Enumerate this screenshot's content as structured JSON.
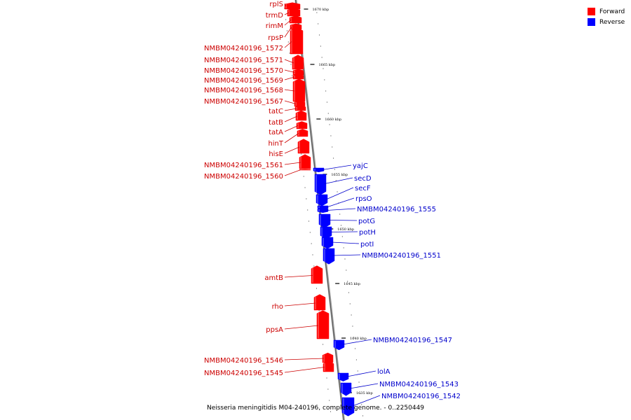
{
  "legend": {
    "forward": {
      "label": "Forward",
      "color": "#ff0000"
    },
    "reverse": {
      "label": "Reverse",
      "color": "#0000ff"
    }
  },
  "caption": "Neisseria meningitidis M04-240196, complete genome. - 0..2250449",
  "axis_ticks": [
    {
      "label": "1670 kbp",
      "kbp": 1670
    },
    {
      "label": "1665 kbp",
      "kbp": 1665
    },
    {
      "label": "1660 kbp",
      "kbp": 1660
    },
    {
      "label": "1655 kbp",
      "kbp": 1655
    },
    {
      "label": "1650 kbp",
      "kbp": 1650
    },
    {
      "label": "1645 kbp",
      "kbp": 1645
    },
    {
      "label": "1640 kbp",
      "kbp": 1640
    },
    {
      "label": "1635 kbp",
      "kbp": 1635
    }
  ],
  "forward_genes": [
    {
      "name": "rplS"
    },
    {
      "name": "trmD"
    },
    {
      "name": "rimM"
    },
    {
      "name": "rpsP"
    },
    {
      "name": "NMBM04240196_1572"
    },
    {
      "name": "NMBM04240196_1571"
    },
    {
      "name": "NMBM04240196_1570"
    },
    {
      "name": "NMBM04240196_1569"
    },
    {
      "name": "NMBM04240196_1568"
    },
    {
      "name": "NMBM04240196_1567"
    },
    {
      "name": "tatC"
    },
    {
      "name": "tatB"
    },
    {
      "name": "tatA"
    },
    {
      "name": "hinT"
    },
    {
      "name": "hisE"
    },
    {
      "name": "NMBM04240196_1561"
    },
    {
      "name": "NMBM04240196_1560"
    },
    {
      "name": "amtB"
    },
    {
      "name": "rho"
    },
    {
      "name": "ppsA"
    },
    {
      "name": "NMBM04240196_1546"
    },
    {
      "name": "NMBM04240196_1545"
    }
  ],
  "reverse_genes": [
    {
      "name": "yajC"
    },
    {
      "name": "secD"
    },
    {
      "name": "secF"
    },
    {
      "name": "rpsO"
    },
    {
      "name": "NMBM04240196_1555"
    },
    {
      "name": "potG"
    },
    {
      "name": "potH"
    },
    {
      "name": "potI"
    },
    {
      "name": "NMBM04240196_1551"
    },
    {
      "name": "NMBM04240196_1547"
    },
    {
      "name": "lolA"
    },
    {
      "name": "NMBM04240196_1543"
    },
    {
      "name": "NMBM04240196_1542"
    }
  ]
}
